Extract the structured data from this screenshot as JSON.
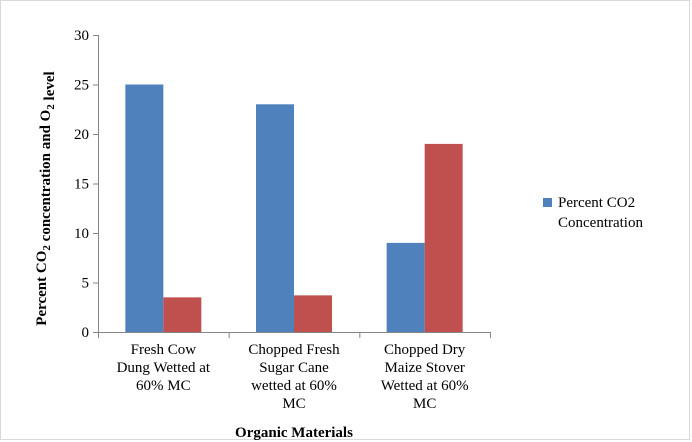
{
  "chart_data": {
    "type": "bar",
    "categories": [
      [
        "Fresh Cow",
        "Dung Wetted at",
        "60% MC"
      ],
      [
        "Chopped Fresh",
        "Sugar Cane",
        "wetted at 60%",
        "MC"
      ],
      [
        "Chopped Dry",
        "Maize Stover",
        "Wetted at 60%",
        "MC"
      ]
    ],
    "series": [
      {
        "name": "Percent CO2 Concentration",
        "values": [
          25,
          23,
          9
        ],
        "color": "#4f81bd"
      },
      {
        "name": "",
        "values": [
          3.5,
          3.7,
          19
        ],
        "color": "#c0504d"
      }
    ],
    "title": "",
    "xlabel": "Organic Materials",
    "ylabel": "Percent CO2 concentration and O2 level",
    "ylim": [
      0,
      30
    ],
    "yticks": [
      0,
      5,
      10,
      15,
      20,
      25,
      30
    ],
    "legend": {
      "placement": "right",
      "entries": [
        {
          "lines": [
            "Percent CO2",
            "Concentration"
          ],
          "color": "#4f81bd"
        }
      ]
    },
    "grid": false
  }
}
